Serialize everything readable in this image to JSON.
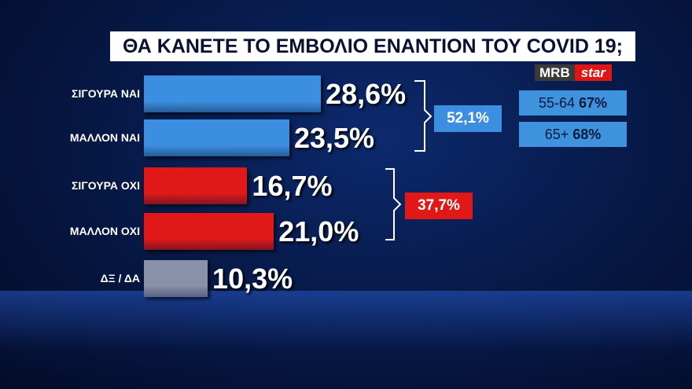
{
  "chart_data": {
    "type": "bar",
    "orientation": "horizontal",
    "title": "ΘΑ ΚΑΝΕΤΕ ΤΟ ΕΜΒΟΛΙΟ ΕΝΑΝΤΙΟΝ ΤΟΥ COVID 19;",
    "source": [
      "MRB",
      "star"
    ],
    "categories": [
      "ΣΙΓΟΥΡΑ ΝΑΙ",
      "ΜΑΛΛΟΝ ΝΑΙ",
      "ΣΙΓΟΥΡΑ ΟΧΙ",
      "ΜΑΛΛΟΝ ΟΧΙ",
      "ΔΞ / ΔΑ"
    ],
    "values": [
      28.6,
      23.5,
      16.7,
      21.0,
      10.3
    ],
    "value_labels": [
      "28,6%",
      "23,5%",
      "16,7%",
      "21,0%",
      "10,3%"
    ],
    "colors": [
      "#3c8fe0",
      "#3c8fe0",
      "#e01818",
      "#e01818",
      "#8a90a8"
    ],
    "groups": [
      {
        "value": 52.1,
        "label": "52,1%",
        "color": "#3c8fe0"
      },
      {
        "value": 37.7,
        "label": "37,7%",
        "color": "#e01818"
      }
    ],
    "age_groups": [
      {
        "name": "55-64",
        "value": 67,
        "label": "67%"
      },
      {
        "name": "65+",
        "value": 68,
        "label": "68%"
      }
    ]
  }
}
